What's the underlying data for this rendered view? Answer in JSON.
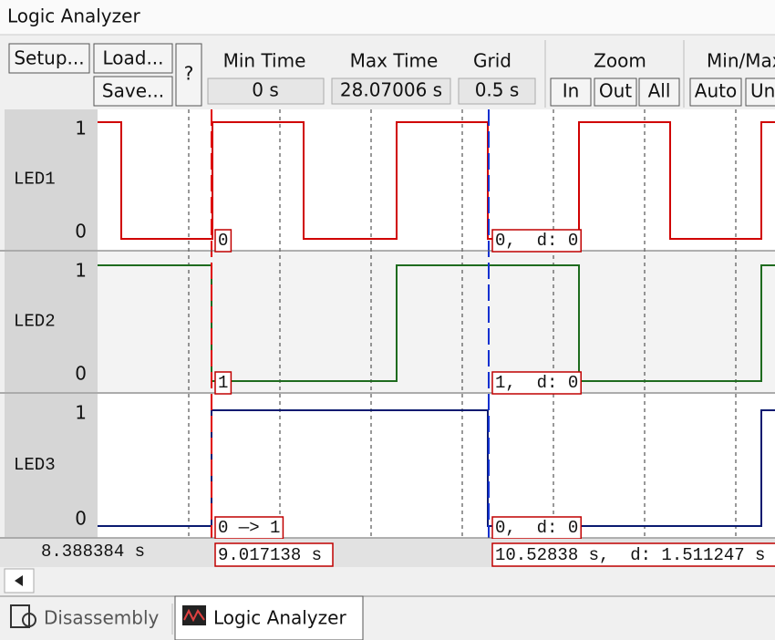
{
  "window": {
    "title": "Logic Analyzer"
  },
  "toolbar": {
    "setup": "Setup...",
    "load": "Load...",
    "save": "Save...",
    "help": "?",
    "min_time": {
      "label": "Min Time",
      "value": "0 s"
    },
    "max_time": {
      "label": "Max Time",
      "value": "28.07006 s"
    },
    "grid": {
      "label": "Grid",
      "value": "0.5 s"
    },
    "zoom": {
      "label": "Zoom",
      "in": "In",
      "out": "Out",
      "all": "All"
    },
    "min_max": {
      "label": "Min/Max",
      "auto": "Auto",
      "undo": "Un"
    }
  },
  "signals": [
    {
      "name": "LED1",
      "high": "1",
      "low": "0",
      "cursor1": "0",
      "cursor2": "0,  d: 0"
    },
    {
      "name": "LED2",
      "high": "1",
      "low": "0",
      "cursor1": "1",
      "cursor2": "1,  d: 0"
    },
    {
      "name": "LED3",
      "high": "1",
      "low": "0",
      "cursor1": "0 —> 1",
      "cursor2": "0,  d: 0"
    }
  ],
  "time_bar": {
    "mouse": "8.388384 s",
    "cursor1": "9.017138 s",
    "cursor2": "10.52838 s,  d: 1.511247 s"
  },
  "tabs": [
    "Disassembly",
    "Logic Analyzer"
  ]
}
